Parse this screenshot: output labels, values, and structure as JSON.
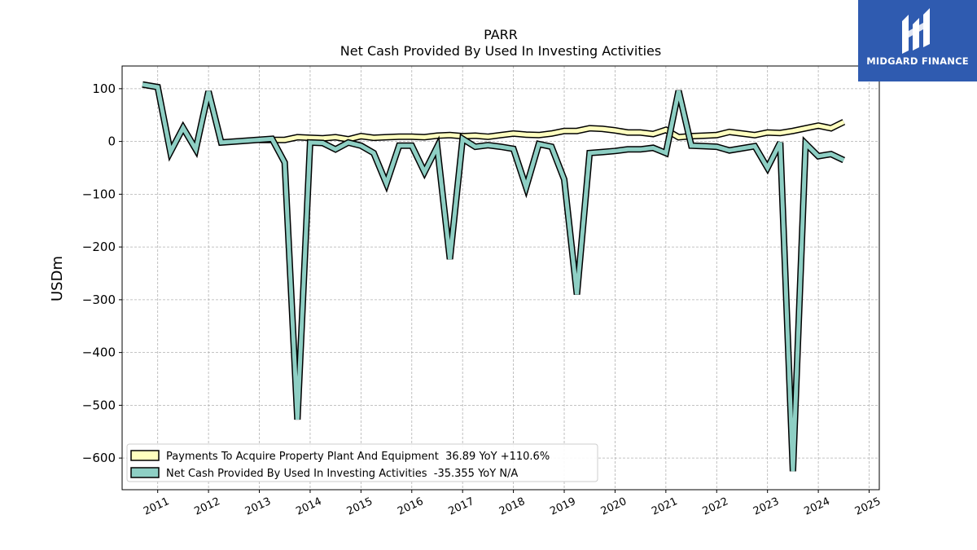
{
  "chart_data": {
    "type": "line",
    "title": "PARR",
    "subtitle": "Net Cash Provided By Used In Investing Activities",
    "ylabel": "USDm",
    "xlabel": "",
    "ylim": [
      -660,
      143
    ],
    "xlim": [
      2010.3,
      2025.2
    ],
    "grid": true,
    "legend_position": "lower-left",
    "x_ticks": [
      2011,
      2012,
      2013,
      2014,
      2015,
      2016,
      2017,
      2018,
      2019,
      2020,
      2021,
      2022,
      2023,
      2024,
      2025
    ],
    "y_ticks": [
      100,
      0,
      -100,
      -200,
      -300,
      -400,
      -500,
      -600
    ],
    "series": [
      {
        "name": "Payments To Acquire Property Plant And Equipment",
        "legend_label": "Payments To Acquire Property Plant And Equipment  36.89 YoY +110.6%",
        "color": "#ffffbf",
        "x": [
          2013.0,
          2013.25,
          2013.5,
          2013.75,
          2014.0,
          2014.25,
          2014.5,
          2014.75,
          2015.0,
          2015.25,
          2015.5,
          2015.75,
          2016.0,
          2016.25,
          2016.5,
          2016.75,
          2017.0,
          2017.25,
          2017.5,
          2017.75,
          2018.0,
          2018.25,
          2018.5,
          2018.75,
          2019.0,
          2019.25,
          2019.5,
          2019.75,
          2020.0,
          2020.25,
          2020.5,
          2020.75,
          2021.0,
          2021.25,
          2021.5,
          2021.75,
          2022.0,
          2022.25,
          2022.5,
          2022.75,
          2023.0,
          2023.25,
          2023.5,
          2023.75,
          2024.0,
          2024.25,
          2024.5
        ],
        "values": [
          3,
          3,
          3,
          8,
          7,
          6,
          8,
          4,
          10,
          7,
          8,
          9,
          9,
          8,
          11,
          12,
          10,
          11,
          9,
          12,
          15,
          13,
          12,
          15,
          20,
          20,
          25,
          24,
          21,
          17,
          17,
          14,
          22,
          8,
          10,
          11,
          12,
          18,
          15,
          12,
          17,
          16,
          20,
          25,
          30,
          25,
          36.89
        ]
      },
      {
        "name": "Net Cash Provided By Used In Investing Activities",
        "legend_label": "Net Cash Provided By Used In Investing Activities  -35.355 YoY N/A",
        "color": "#8ecfc4",
        "x": [
          2010.7,
          2011.0,
          2011.25,
          2011.5,
          2011.75,
          2012.0,
          2012.25,
          2013.25,
          2013.5,
          2013.75,
          2014.0,
          2014.25,
          2014.5,
          2014.75,
          2015.0,
          2015.25,
          2015.5,
          2015.75,
          2016.0,
          2016.25,
          2016.5,
          2016.75,
          2017.0,
          2017.25,
          2017.5,
          2017.75,
          2018.0,
          2018.25,
          2018.5,
          2018.75,
          2019.0,
          2019.25,
          2019.5,
          2019.75,
          2020.0,
          2020.25,
          2020.5,
          2020.75,
          2021.0,
          2021.25,
          2021.5,
          2021.75,
          2022.0,
          2022.25,
          2022.5,
          2022.75,
          2023.0,
          2023.25,
          2023.5,
          2023.75,
          2024.0,
          2024.25,
          2024.5
        ],
        "values": [
          108,
          103,
          -20,
          26,
          -15,
          95,
          -2,
          5,
          -40,
          -527,
          -2,
          -3,
          -15,
          -2,
          -8,
          -22,
          -80,
          -8,
          -8,
          -58,
          -10,
          -223,
          5,
          -10,
          -7,
          -10,
          -14,
          -87,
          -5,
          -10,
          -72,
          -290,
          -22,
          -20,
          -18,
          -15,
          -15,
          -12,
          -22,
          96,
          -8,
          -9,
          -10,
          -17,
          -13,
          -9,
          -50,
          -2,
          -625,
          -4,
          -28,
          -24,
          -35.355
        ]
      }
    ]
  },
  "logo": {
    "text": "MIDGARD FINANCE"
  }
}
